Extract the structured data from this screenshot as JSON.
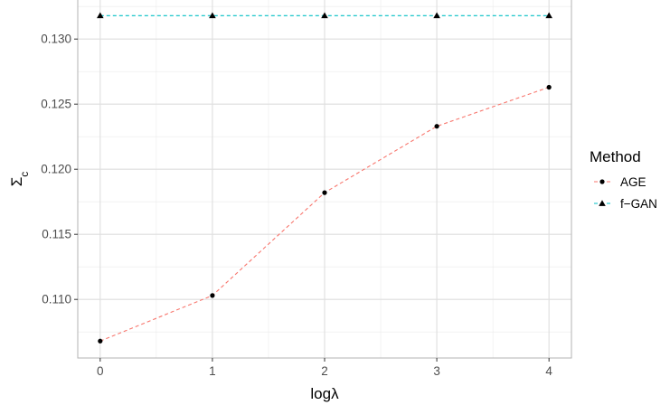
{
  "chart_data": {
    "type": "line",
    "x": [
      0,
      1,
      2,
      3,
      4
    ],
    "series": [
      {
        "name": "AGE",
        "values": [
          0.1068,
          0.1103,
          0.1182,
          0.1233,
          0.1263
        ],
        "color": "#F8766D",
        "marker": "circle",
        "line_style": "dashed"
      },
      {
        "name": "f−GAN",
        "values": [
          0.1318,
          0.1318,
          0.1318,
          0.1318,
          0.1318
        ],
        "color": "#00BFC4",
        "marker": "triangle",
        "line_style": "dashed"
      }
    ],
    "x_ticks": [
      "0",
      "1",
      "2",
      "3",
      "4"
    ],
    "y_ticks": [
      "0.110",
      "0.115",
      "0.120",
      "0.125",
      "0.130"
    ],
    "y_tick_values": [
      0.11,
      0.115,
      0.12,
      0.125,
      0.13
    ],
    "xlabel": "logλ",
    "ylabel_main": "Σ",
    "ylabel_sub": "c",
    "xlim": [
      -0.2,
      4.2
    ],
    "ylim": [
      0.1055,
      0.133
    ],
    "grid": true,
    "legend_title": "Method",
    "legend_position": "right"
  }
}
